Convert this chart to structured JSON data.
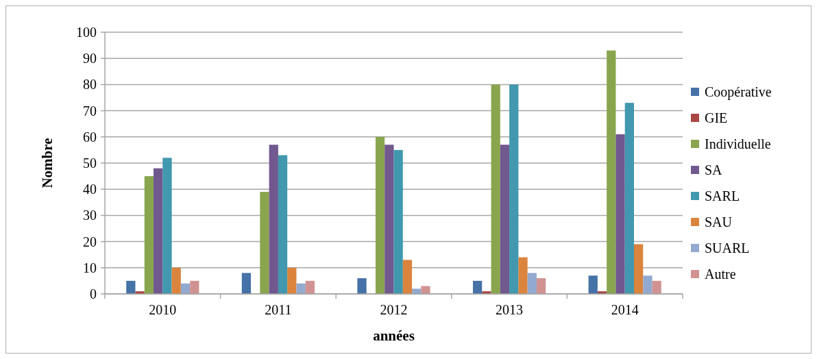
{
  "chart_data": {
    "type": "bar",
    "xlabel": "années",
    "ylabel": "Nombre",
    "categories": [
      "2010",
      "2011",
      "2012",
      "2013",
      "2014"
    ],
    "series": [
      {
        "name": "Coopérative",
        "color": "#4572a7",
        "values": [
          5,
          8,
          6,
          5,
          7
        ]
      },
      {
        "name": "GIE",
        "color": "#aa4643",
        "values": [
          1,
          0,
          0,
          1,
          1
        ]
      },
      {
        "name": "Individuelle",
        "color": "#89a54e",
        "values": [
          45,
          39,
          60,
          80,
          93
        ]
      },
      {
        "name": "SA",
        "color": "#71588f",
        "values": [
          48,
          57,
          57,
          57,
          61
        ]
      },
      {
        "name": "SARL",
        "color": "#4198af",
        "values": [
          52,
          53,
          55,
          80,
          73
        ]
      },
      {
        "name": "SAU",
        "color": "#db843d",
        "values": [
          10,
          10,
          13,
          14,
          19
        ]
      },
      {
        "name": "SUARL",
        "color": "#93a9cf",
        "values": [
          4,
          4,
          2,
          8,
          7
        ]
      },
      {
        "name": "Autre",
        "color": "#d19392",
        "values": [
          5,
          5,
          3,
          6,
          5
        ]
      }
    ],
    "ylim": [
      0,
      100
    ],
    "yticks": [
      0,
      10,
      20,
      30,
      40,
      50,
      60,
      70,
      80,
      90,
      100
    ],
    "grid": "y",
    "legend": "right"
  }
}
